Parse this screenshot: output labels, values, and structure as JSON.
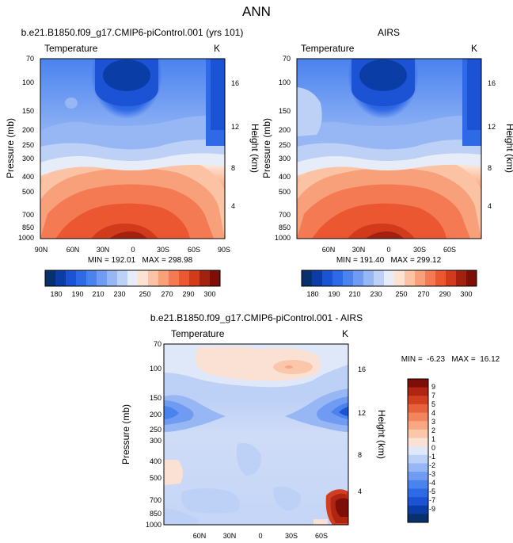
{
  "page": {
    "title": "ANN"
  },
  "colors": {
    "abs_levels": [
      "#08306b",
      "#0a3ea6",
      "#1c52d4",
      "#2f6ae6",
      "#4a82ee",
      "#6f9cf2",
      "#96b6f4",
      "#bdd0f6",
      "#e6ecf8",
      "#fde2d2",
      "#fbc3a4",
      "#f7a07a",
      "#f37a52",
      "#ea5730",
      "#d23a1c",
      "#a3220f",
      "#7c0f08"
    ],
    "diff_levels": [
      "#08306b",
      "#0a3ea6",
      "#1c52d4",
      "#2f6ae6",
      "#4a82ee",
      "#6f9cf2",
      "#96b6f4",
      "#bdd0f6",
      "#dfe8f8",
      "#fbe1d3",
      "#fbc7aa",
      "#f7a882",
      "#f1855d",
      "#e5623c",
      "#d03f20",
      "#b02512",
      "#7d0f08"
    ]
  },
  "chart_data": [
    {
      "id": "model",
      "type": "heatmap",
      "title": "b.e21.B1850.f09_g17.CMIP6-piControl.001 (yrs 101)",
      "left_label": "Temperature",
      "units": "K",
      "ylabel": "Pressure (mb)",
      "ylabel_right": "Height (km)",
      "x_ticks": [
        "90N",
        "60N",
        "30N",
        "0",
        "30S",
        "60S",
        "90S"
      ],
      "y_ticks": [
        "70",
        "100",
        "150",
        "200",
        "250",
        "300",
        "400",
        "500",
        "700",
        "850",
        "1000"
      ],
      "height_ticks": [
        "16",
        "12",
        "8",
        "4"
      ],
      "stats": "MIN = 192.01   MAX = 298.98",
      "colorbar_labels": [
        "180",
        "190",
        "210",
        "230",
        "250",
        "270",
        "290",
        "300"
      ],
      "min": 192.01,
      "max": 298.98,
      "xlim": [
        90,
        -90
      ],
      "ylim": [
        1000,
        70
      ]
    },
    {
      "id": "obs",
      "type": "heatmap",
      "title": "AIRS",
      "left_label": "Temperature",
      "units": "K",
      "ylabel": "Pressure (mb)",
      "ylabel_right": "Height (km)",
      "x_ticks": [
        "60N",
        "30N",
        "0",
        "30S",
        "60S"
      ],
      "y_ticks": [
        "70",
        "100",
        "150",
        "200",
        "250",
        "300",
        "400",
        "500",
        "700",
        "850",
        "1000"
      ],
      "height_ticks": [
        "16",
        "12",
        "8",
        "4"
      ],
      "stats": "MIN = 191.40   MAX = 299.12",
      "colorbar_labels": [
        "180",
        "190",
        "210",
        "230",
        "250",
        "270",
        "290",
        "300"
      ],
      "min": 191.4,
      "max": 299.12,
      "xlim": [
        90,
        -90
      ],
      "ylim": [
        1000,
        70
      ]
    },
    {
      "id": "diff",
      "type": "heatmap",
      "title": "b.e21.B1850.f09_g17.CMIP6-piControl.001 - AIRS",
      "left_label": "Temperature",
      "units": "K",
      "ylabel": "Pressure (mb)",
      "ylabel_right": "Height (km)",
      "x_ticks": [
        "60N",
        "30N",
        "0",
        "30S",
        "60S"
      ],
      "y_ticks": [
        "70",
        "100",
        "150",
        "200",
        "250",
        "300",
        "400",
        "500",
        "700",
        "850",
        "1000"
      ],
      "height_ticks": [
        "16",
        "12",
        "8",
        "4"
      ],
      "stats": "MIN =  -6.23   MAX =  16.12",
      "colorbar_labels": [
        "9",
        "7",
        "5",
        "4",
        "3",
        "2",
        "1",
        "0",
        "-1",
        "-2",
        "-3",
        "-4",
        "-5",
        "-7",
        "-9"
      ],
      "min": -6.23,
      "max": 16.12,
      "xlim": [
        90,
        -90
      ],
      "ylim": [
        1000,
        70
      ]
    }
  ]
}
